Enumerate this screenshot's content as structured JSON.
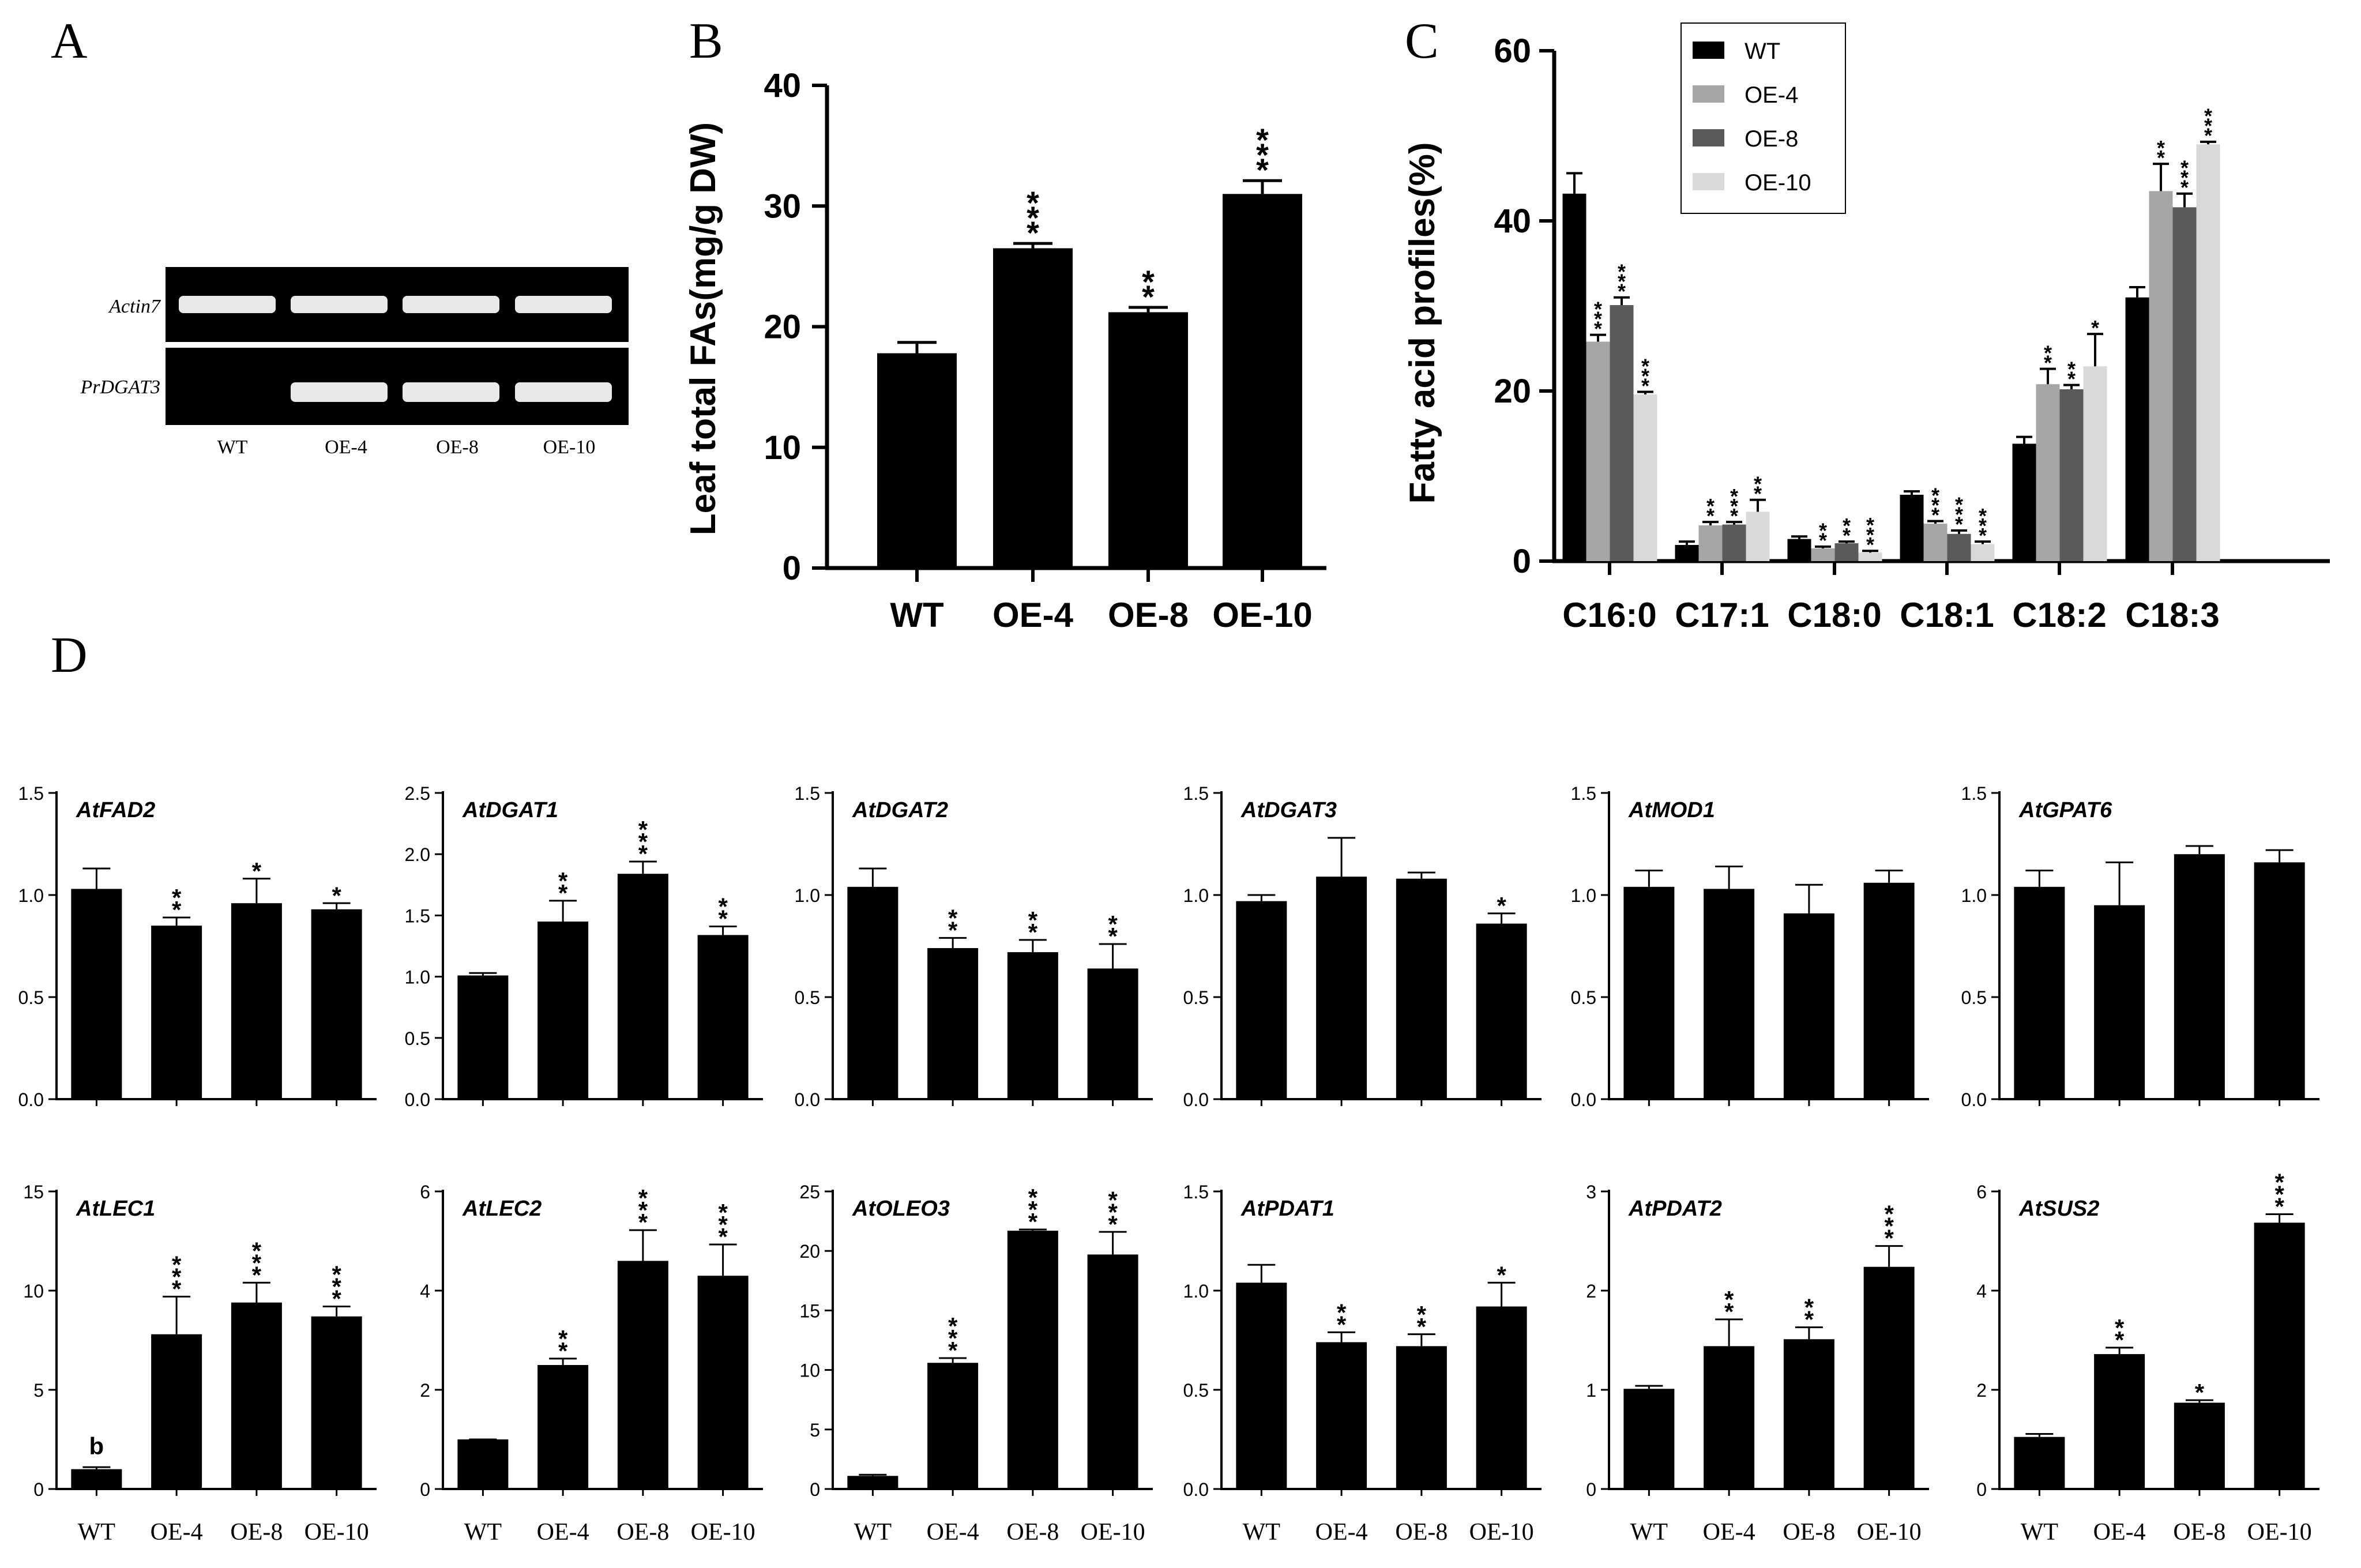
{
  "colors": {
    "black": "#000000",
    "wt": "#000000",
    "oe4": "#a6a6a6",
    "oe8": "#5a5a5a",
    "oe10": "#d9d9d9",
    "gel_bg": "#0c0c0c",
    "band": "#e8e8e8"
  },
  "panel_a": {
    "letter": "A",
    "gene_labels": [
      "Actin7",
      "PrDGAT3"
    ],
    "lane_labels": [
      "WT",
      "OE-4",
      "OE-8",
      "OE-10"
    ]
  },
  "chart_data": [
    {
      "id": "B",
      "letter": "B",
      "type": "bar",
      "title": "",
      "xlabel": "",
      "ylabel": "Leaf total FAs(mg/g DW)",
      "categories": [
        "WT",
        "OE-4",
        "OE-8",
        "OE-10"
      ],
      "values": [
        17.8,
        26.5,
        21.2,
        31.0
      ],
      "errors": [
        0.9,
        0.4,
        0.4,
        1.1
      ],
      "sig": [
        "",
        "***",
        "**",
        "***"
      ],
      "ylim": [
        0,
        40
      ],
      "yticks": [
        0,
        10,
        20,
        30,
        40
      ],
      "grid": false
    },
    {
      "id": "C",
      "letter": "C",
      "type": "bar",
      "title": "",
      "xlabel": "",
      "ylabel": "Fatty acid profiles(%)",
      "categories": [
        "C16:0",
        "C17:1",
        "C18:0",
        "C18:1",
        "C18:2",
        "C18:3"
      ],
      "legend": "top-center",
      "series": [
        {
          "name": "WT",
          "color": "#000000",
          "values": [
            43.2,
            1.9,
            2.6,
            7.8,
            13.8,
            31.0
          ],
          "errors": [
            2.4,
            0.4,
            0.3,
            0.4,
            0.8,
            1.2
          ],
          "sig": [
            "",
            "",
            "",
            "",
            "",
            ""
          ]
        },
        {
          "name": "OE-4",
          "color": "#a6a6a6",
          "values": [
            25.8,
            4.2,
            1.5,
            4.4,
            20.8,
            43.5
          ],
          "errors": [
            0.8,
            0.4,
            0.2,
            0.3,
            1.8,
            3.2
          ],
          "sig": [
            "***",
            "**",
            "**",
            "***",
            "**",
            "**"
          ]
        },
        {
          "name": "OE-8",
          "color": "#5a5a5a",
          "values": [
            30.1,
            4.3,
            2.1,
            3.2,
            20.2,
            41.6
          ],
          "errors": [
            0.9,
            0.3,
            0.2,
            0.4,
            0.5,
            1.6
          ],
          "sig": [
            "***",
            "***",
            "**",
            "***",
            "**",
            "***"
          ]
        },
        {
          "name": "OE-10",
          "color": "#d9d9d9",
          "values": [
            19.6,
            5.8,
            1.0,
            2.0,
            22.9,
            49.0
          ],
          "errors": [
            0.3,
            1.4,
            0.2,
            0.3,
            3.8,
            0.3
          ],
          "sig": [
            "***",
            "**",
            "***",
            "***",
            "*",
            "***"
          ]
        }
      ],
      "ylim": [
        0,
        60
      ],
      "yticks": [
        0,
        20,
        40,
        60
      ],
      "grid": false
    },
    {
      "id": "D_AtFAD2",
      "letter": "D",
      "type": "bar",
      "title": "AtFAD2",
      "categories": [
        "WT",
        "OE-4",
        "OE-8",
        "OE-10"
      ],
      "values": [
        1.03,
        0.85,
        0.96,
        0.93
      ],
      "errors": [
        0.1,
        0.04,
        0.12,
        0.03
      ],
      "sig": [
        "",
        "**",
        "*",
        "*"
      ],
      "ylim": [
        0,
        1.5
      ],
      "yticks": [
        "0.0",
        "0.5",
        "1.0",
        "1.5"
      ],
      "xlabels": false
    },
    {
      "id": "D_AtDGAT1",
      "type": "bar",
      "title": "AtDGAT1",
      "categories": [
        "WT",
        "OE-4",
        "OE-8",
        "OE-10"
      ],
      "values": [
        1.01,
        1.45,
        1.84,
        1.34
      ],
      "errors": [
        0.02,
        0.17,
        0.1,
        0.07
      ],
      "sig": [
        "",
        "**",
        "***",
        "**"
      ],
      "ylim": [
        0,
        2.5
      ],
      "yticks": [
        "0.0",
        "0.5",
        "1.0",
        "1.5",
        "2.0",
        "2.5"
      ],
      "xlabels": false
    },
    {
      "id": "D_AtDGAT2",
      "type": "bar",
      "title": "AtDGAT2",
      "categories": [
        "WT",
        "OE-4",
        "OE-8",
        "OE-10"
      ],
      "values": [
        1.04,
        0.74,
        0.72,
        0.64
      ],
      "errors": [
        0.09,
        0.05,
        0.06,
        0.12
      ],
      "sig": [
        "",
        "**",
        "**",
        "**"
      ],
      "ylim": [
        0,
        1.5
      ],
      "yticks": [
        "0.0",
        "0.5",
        "1.0",
        "1.5"
      ],
      "xlabels": false
    },
    {
      "id": "D_AtDGAT3",
      "type": "bar",
      "title": "AtDGAT3",
      "categories": [
        "WT",
        "OE-4",
        "OE-8",
        "OE-10"
      ],
      "values": [
        0.97,
        1.09,
        1.08,
        0.86
      ],
      "errors": [
        0.03,
        0.19,
        0.03,
        0.05
      ],
      "sig": [
        "",
        "",
        "",
        "*"
      ],
      "ylim": [
        0,
        1.5
      ],
      "yticks": [
        "0.0",
        "0.5",
        "1.0",
        "1.5"
      ],
      "xlabels": false
    },
    {
      "id": "D_AtMOD1",
      "type": "bar",
      "title": "AtMOD1",
      "categories": [
        "WT",
        "OE-4",
        "OE-8",
        "OE-10"
      ],
      "values": [
        1.04,
        1.03,
        0.91,
        1.06
      ],
      "errors": [
        0.08,
        0.11,
        0.14,
        0.06
      ],
      "sig": [
        "",
        "",
        "",
        ""
      ],
      "ylim": [
        0,
        1.5
      ],
      "yticks": [
        "0.0",
        "0.5",
        "1.0",
        "1.5"
      ],
      "xlabels": false
    },
    {
      "id": "D_AtGPAT6",
      "type": "bar",
      "title": "AtGPAT6",
      "categories": [
        "WT",
        "OE-4",
        "OE-8",
        "OE-10"
      ],
      "values": [
        1.04,
        0.95,
        1.2,
        1.16
      ],
      "errors": [
        0.08,
        0.21,
        0.04,
        0.06
      ],
      "sig": [
        "",
        "",
        "",
        ""
      ],
      "ylim": [
        0,
        1.5
      ],
      "yticks": [
        "0.0",
        "0.5",
        "1.0",
        "1.5"
      ],
      "xlabels": false
    },
    {
      "id": "D_AtLEC1",
      "type": "bar",
      "title": "AtLEC1",
      "categories": [
        "WT",
        "OE-4",
        "OE-8",
        "OE-10"
      ],
      "values": [
        1.0,
        7.8,
        9.4,
        8.7
      ],
      "errors": [
        0.1,
        1.9,
        1.0,
        0.5
      ],
      "sig": [
        "b",
        "***",
        "***",
        "***"
      ],
      "ylim": [
        0,
        15
      ],
      "yticks": [
        "0",
        "5",
        "10",
        "15"
      ],
      "xlabels": true
    },
    {
      "id": "D_AtLEC2",
      "type": "bar",
      "title": "AtLEC2",
      "categories": [
        "WT",
        "OE-4",
        "OE-8",
        "OE-10"
      ],
      "values": [
        1.0,
        2.5,
        4.6,
        4.3
      ],
      "errors": [
        0.0,
        0.13,
        0.62,
        0.63
      ],
      "sig": [
        "",
        "**",
        "***",
        "***"
      ],
      "ylim": [
        0,
        6
      ],
      "yticks": [
        "0",
        "2",
        "4",
        "6"
      ],
      "xlabels": true
    },
    {
      "id": "D_AtOLEO3",
      "type": "bar",
      "title": "AtOLEO3",
      "categories": [
        "WT",
        "OE-4",
        "OE-8",
        "OE-10"
      ],
      "values": [
        1.1,
        10.6,
        21.7,
        19.7
      ],
      "errors": [
        0.1,
        0.4,
        0.1,
        1.9
      ],
      "sig": [
        "",
        "***",
        "***",
        "***"
      ],
      "ylim": [
        0,
        25
      ],
      "yticks": [
        "0",
        "5",
        "10",
        "15",
        "20",
        "25"
      ],
      "xlabels": true
    },
    {
      "id": "D_AtPDAT1",
      "type": "bar",
      "title": "AtPDAT1",
      "categories": [
        "WT",
        "OE-4",
        "OE-8",
        "OE-10"
      ],
      "values": [
        1.04,
        0.74,
        0.72,
        0.92
      ],
      "errors": [
        0.09,
        0.05,
        0.06,
        0.12
      ],
      "sig": [
        "",
        "**",
        "**",
        "*"
      ],
      "ylim": [
        0,
        1.5
      ],
      "yticks": [
        "0.0",
        "0.5",
        "1.0",
        "1.5"
      ],
      "xlabels": true
    },
    {
      "id": "D_AtPDAT2",
      "type": "bar",
      "title": "AtPDAT2",
      "categories": [
        "WT",
        "OE-4",
        "OE-8",
        "OE-10"
      ],
      "values": [
        1.01,
        1.44,
        1.51,
        2.24
      ],
      "errors": [
        0.03,
        0.27,
        0.12,
        0.21
      ],
      "sig": [
        "",
        "**",
        "**",
        "***"
      ],
      "ylim": [
        0,
        3
      ],
      "yticks": [
        "0",
        "1",
        "2",
        "3"
      ],
      "xlabels": true
    },
    {
      "id": "D_AtSUS2",
      "type": "bar",
      "title": "AtSUS2",
      "categories": [
        "WT",
        "OE-4",
        "OE-8",
        "OE-10"
      ],
      "values": [
        1.05,
        2.72,
        1.74,
        5.37
      ],
      "errors": [
        0.06,
        0.13,
        0.05,
        0.17
      ],
      "sig": [
        "",
        "**",
        "*",
        "***"
      ],
      "ylim": [
        0,
        6
      ],
      "yticks": [
        "0",
        "2",
        "4",
        "6"
      ],
      "xlabels": true
    }
  ]
}
